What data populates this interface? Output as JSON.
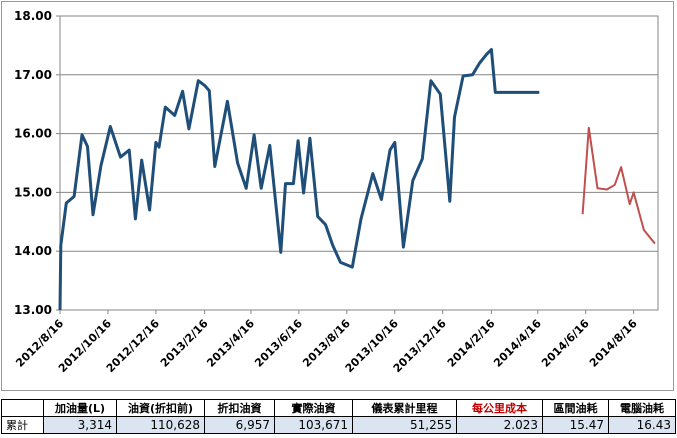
{
  "chart_data": {
    "type": "line",
    "title": "",
    "xlabel": "",
    "ylabel": "",
    "ylim": [
      13,
      18
    ],
    "yticks": [
      "13.00",
      "14.00",
      "15.00",
      "16.00",
      "17.00",
      "18.00"
    ],
    "xticks": [
      "2012/8/16",
      "2012/10/16",
      "2012/12/16",
      "2013/2/16",
      "2013/4/16",
      "2013/6/16",
      "2013/8/16",
      "2013/10/16",
      "2013/12/16",
      "2014/2/16",
      "2014/4/16",
      "2014/6/16",
      "2014/8/16"
    ],
    "grid": "horizontal",
    "series": [
      {
        "color": "#1f4e79",
        "x": [
          "2012/8/16",
          "2012/8/17",
          "2012/8/24",
          "2012/9/3",
          "2012/9/13",
          "2012/9/20",
          "2012/9/27",
          "2012/10/7",
          "2012/10/19",
          "2012/11/1",
          "2012/11/12",
          "2012/11/20",
          "2012/11/28",
          "2012/12/8",
          "2012/12/16",
          "2012/12/20",
          "2012/12/28",
          "2013/1/9",
          "2013/1/19",
          "2013/1/27",
          "2013/2/8",
          "2013/2/16",
          "2013/2/22",
          "2013/3/1",
          "2013/3/17",
          "2013/3/30",
          "2013/4/10",
          "2013/4/20",
          "2013/4/29",
          "2013/5/10",
          "2013/5/24",
          "2013/5/30",
          "2013/6/9",
          "2013/6/15",
          "2013/6/22",
          "2013/6/30",
          "2013/7/10",
          "2013/7/20",
          "2013/7/29",
          "2013/8/8",
          "2013/8/23",
          "2013/9/3",
          "2013/9/18",
          "2013/9/29",
          "2013/10/10",
          "2013/10/16",
          "2013/10/27",
          "2013/11/8",
          "2013/11/20",
          "2013/12/1",
          "2013/12/13",
          "2013/12/25",
          "2013/12/31",
          "2014/1/11",
          "2014/1/23",
          "2014/2/1",
          "2014/2/10",
          "2014/2/16",
          "2014/2/21",
          "2014/3/6",
          "2014/3/13",
          "2014/3/26",
          "2014/4/6",
          "2014/4/18"
        ],
        "y": [
          13.0,
          14.1,
          14.82,
          14.93,
          15.98,
          15.78,
          14.62,
          15.45,
          16.12,
          15.6,
          15.72,
          14.55,
          15.55,
          14.7,
          15.85,
          15.77,
          16.45,
          16.31,
          16.72,
          16.08,
          16.9,
          16.82,
          16.73,
          15.44,
          16.55,
          15.5,
          15.07,
          15.98,
          15.07,
          15.8,
          13.98,
          15.15,
          15.15,
          15.88,
          14.99,
          15.92,
          14.59,
          14.45,
          14.1,
          13.81,
          13.73,
          14.55,
          15.32,
          14.88,
          15.72,
          15.85,
          14.07,
          15.2,
          15.57,
          16.9,
          16.67,
          14.85,
          16.28,
          16.98,
          17.0,
          17.2,
          17.35,
          17.43,
          16.7,
          16.7,
          16.7,
          16.7,
          16.7,
          16.7
        ]
      },
      {
        "color": "#c0504d",
        "x": [
          "2014/6/12",
          "2014/6/20",
          "2014/7/1",
          "2014/7/13",
          "2014/7/23",
          "2014/7/31",
          "2014/8/11",
          "2014/8/16",
          "2014/8/29",
          "2014/9/12"
        ],
        "y": [
          14.63,
          16.1,
          15.07,
          15.05,
          15.13,
          15.43,
          14.8,
          15.0,
          14.36,
          14.13
        ]
      }
    ]
  },
  "summary_table": {
    "headers": [
      "",
      "加油量(L)",
      "油資(折扣前)",
      "折扣油資",
      "實際油資",
      "儀表累計里程",
      "每公里成本",
      "區間油耗",
      "電腦油耗"
    ],
    "row_label": "累計",
    "values": [
      "3,314",
      "110,628",
      "6,957",
      "103,671",
      "51,255",
      "2.023",
      "15.47",
      "16.43"
    ],
    "highlight_color": "#c00000",
    "cell_fill": "#dbe5f1"
  }
}
